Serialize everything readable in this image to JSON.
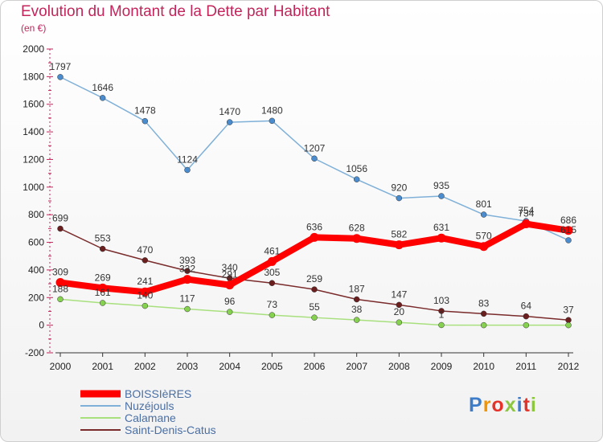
{
  "title": "Evolution du Montant de la Dette par Habitant",
  "subtitle": "(en €)",
  "logo": {
    "text": "Proxiti",
    "colors": [
      "#3d7cc9",
      "#f29400",
      "#e6332a",
      "#8dc63f",
      "#3d7cc9",
      "#e6332a",
      "#8dc63f"
    ]
  },
  "chart_data": {
    "type": "line",
    "title": "Evolution du Montant de la Dette par Habitant",
    "subtitle": "(en €)",
    "x": [
      "2000",
      "2001",
      "2002",
      "2003",
      "2004",
      "2005",
      "2006",
      "2007",
      "2008",
      "2009",
      "2010",
      "2011",
      "2012"
    ],
    "ylim": [
      -200,
      2000
    ],
    "yticks": [
      -200,
      0,
      200,
      400,
      600,
      800,
      1000,
      1200,
      1400,
      1600,
      1800,
      2000
    ],
    "grid": false,
    "legend_position": "bottom-left",
    "series": [
      {
        "name": "BOISSIèRES",
        "color": "#ff0000",
        "values": [
          309,
          269,
          241,
          332,
          291,
          461,
          636,
          628,
          582,
          631,
          570,
          734,
          686
        ],
        "labels": [
          "309",
          "269",
          "241",
          "332",
          "291",
          "461",
          "636",
          "628",
          "582",
          "631",
          "570",
          "734",
          "686"
        ],
        "width": 8,
        "dot": "#ff0000",
        "dot_r": 5.5
      },
      {
        "name": "Nuzéjouls",
        "color": "#7fb0d8",
        "values": [
          1797,
          1646,
          1478,
          1124,
          1470,
          1480,
          1207,
          1056,
          920,
          935,
          801,
          754,
          615
        ],
        "labels": [
          "1797",
          "1646",
          "1478",
          "1124",
          "1470",
          "1480",
          "1207",
          "1056",
          "920",
          "935",
          "801",
          "754",
          "615"
        ],
        "width": 1.5,
        "dot": "#4a8ccd",
        "dot_r": 3.5
      },
      {
        "name": "Calamane",
        "color": "#a8e07e",
        "values": [
          188,
          161,
          140,
          117,
          96,
          73,
          55,
          38,
          20,
          1,
          0,
          0,
          0
        ],
        "labels": [
          "188",
          "161",
          "140",
          "117",
          "96",
          "73",
          "55",
          "38",
          "20",
          "1",
          "",
          "",
          ""
        ],
        "width": 1.5,
        "dot": "#86d14f",
        "dot_r": 3.5
      },
      {
        "name": "Saint-Denis-Catus",
        "color": "#7a2b2b",
        "values": [
          699,
          553,
          470,
          393,
          340,
          305,
          259,
          187,
          147,
          103,
          83,
          64,
          37
        ],
        "labels": [
          "699",
          "553",
          "470",
          "393",
          "340",
          "305",
          "259",
          "187",
          "147",
          "103",
          "83",
          "64",
          "37"
        ],
        "width": 1.5,
        "dot": "#6b1e1e",
        "dot_r": 3.5
      }
    ]
  }
}
